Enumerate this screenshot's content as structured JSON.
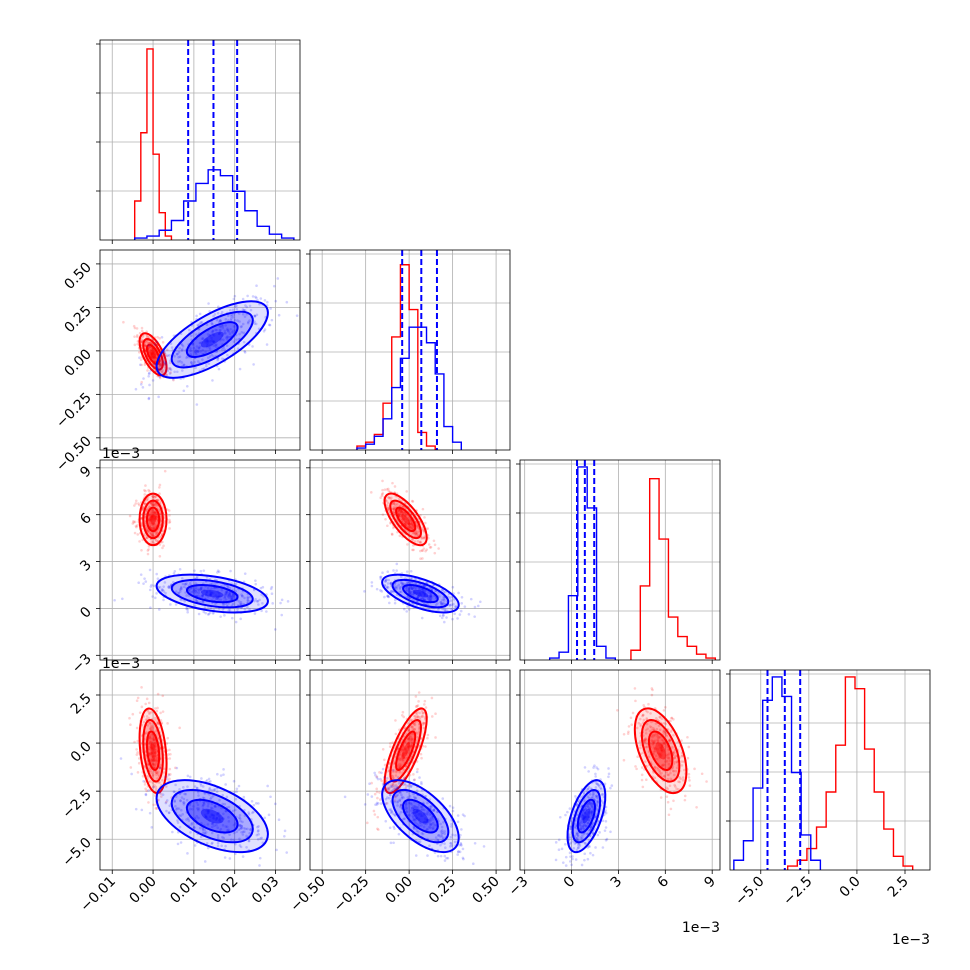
{
  "chart_data": {
    "type": "corner",
    "colors": {
      "red": "#ff0000",
      "blue": "#0000ff",
      "grid": "#b0b0b0"
    },
    "grid": true,
    "series": [
      {
        "color": "#ff0000"
      },
      {
        "color": "#0000ff"
      }
    ],
    "parameters": [
      {
        "range": [
          -0.013,
          0.036
        ],
        "ticks": [
          "-0.01",
          "0.00",
          "0.01",
          "0.02",
          "0.03"
        ],
        "tick_values": [
          -0.01,
          0.0,
          0.01,
          0.02,
          0.03
        ],
        "offset_text": ""
      },
      {
        "range": [
          -0.57,
          0.58
        ],
        "ticks": [
          "-0.50",
          "-0.25",
          "0.00",
          "0.25",
          "0.50"
        ],
        "tick_values": [
          -0.5,
          -0.25,
          0.0,
          0.25,
          0.5
        ],
        "offset_text": ""
      },
      {
        "range": [
          -3.3,
          9.5
        ],
        "ticks": [
          "-3",
          "0",
          "3",
          "6",
          "9"
        ],
        "tick_values": [
          -3,
          0,
          3,
          6,
          9
        ],
        "offset_text": "1e−3"
      },
      {
        "range": [
          -6.6,
          3.8
        ],
        "ticks": [
          "-5.0",
          "-2.5",
          "0.0",
          "2.5"
        ],
        "tick_values": [
          -5.0,
          -2.5,
          0.0,
          2.5
        ],
        "offset_text": "1e−3"
      }
    ],
    "quantiles_blue": [
      [
        0.0086,
        0.0148,
        0.0206
      ],
      [
        -0.04,
        0.07,
        0.16
      ],
      [
        0.35,
        0.85,
        1.45
      ],
      [
        -4.65,
        -3.75,
        -2.95
      ]
    ],
    "histograms": [
      {
        "red": {
          "edges": [
            -0.0045,
            -0.003,
            -0.0015,
            0.0,
            0.0015,
            0.003,
            0.0045
          ],
          "counts": [
            0.2,
            0.55,
            0.98,
            0.44,
            0.14,
            0.02
          ]
        },
        "blue": {
          "edges": [
            -0.0045,
            -0.0015,
            0.0015,
            0.0045,
            0.0075,
            0.0105,
            0.0135,
            0.0165,
            0.0195,
            0.0225,
            0.0255,
            0.0285,
            0.0315,
            0.0345
          ],
          "counts": [
            0.01,
            0.02,
            0.05,
            0.1,
            0.2,
            0.29,
            0.36,
            0.33,
            0.25,
            0.15,
            0.07,
            0.03,
            0.01
          ]
        }
      },
      {
        "red": {
          "edges": [
            -0.3,
            -0.25,
            -0.2,
            -0.15,
            -0.1,
            -0.05,
            0.0,
            0.05,
            0.1,
            0.15
          ],
          "counts": [
            0.02,
            0.04,
            0.08,
            0.24,
            0.58,
            0.95,
            0.72,
            0.09,
            0.02
          ]
        },
        "blue": {
          "edges": [
            -0.3,
            -0.25,
            -0.2,
            -0.15,
            -0.1,
            -0.05,
            0.0,
            0.05,
            0.1,
            0.15,
            0.2,
            0.25,
            0.3
          ],
          "counts": [
            0.01,
            0.03,
            0.07,
            0.16,
            0.32,
            0.47,
            0.63,
            0.63,
            0.55,
            0.39,
            0.12,
            0.04
          ]
        }
      },
      {
        "red": {
          "edges": [
            3.8,
            4.4,
            5.0,
            5.6,
            6.2,
            6.8,
            7.4,
            8.0,
            8.6,
            9.2
          ],
          "counts": [
            0.05,
            0.38,
            0.93,
            0.62,
            0.22,
            0.12,
            0.07,
            0.03,
            0.01
          ]
        },
        "blue": {
          "edges": [
            -1.4,
            -0.8,
            -0.2,
            0.4,
            1.0,
            1.6,
            2.2,
            2.8
          ],
          "counts": [
            0.01,
            0.04,
            0.33,
            0.99,
            0.78,
            0.07,
            0.01
          ]
        }
      },
      {
        "red": {
          "edges": [
            -3.6,
            -3.1,
            -2.6,
            -2.1,
            -1.6,
            -1.1,
            -0.6,
            -0.1,
            0.4,
            0.9,
            1.4,
            1.9,
            2.4,
            2.9
          ],
          "counts": [
            0.02,
            0.05,
            0.11,
            0.22,
            0.4,
            0.64,
            0.99,
            0.93,
            0.62,
            0.4,
            0.21,
            0.07,
            0.02
          ]
        },
        "blue": {
          "edges": [
            -6.4,
            -5.9,
            -5.4,
            -4.9,
            -4.4,
            -3.9,
            -3.4,
            -2.9,
            -2.4,
            -1.9
          ],
          "counts": [
            0.05,
            0.15,
            0.42,
            0.87,
            0.99,
            0.89,
            0.5,
            0.18,
            0.05
          ]
        }
      }
    ],
    "populations": {
      "red": [
        {
          "mean": 0.0,
          "sd": 0.0015
        },
        {
          "mean": -0.02,
          "sd": 0.055
        },
        {
          "mean": 5.7,
          "sd": 0.75
        },
        {
          "mean": -0.4,
          "sd": 1.0
        }
      ],
      "blue": [
        {
          "mean": 0.0145,
          "sd": 0.0062
        },
        {
          "mean": 0.065,
          "sd": 0.1
        },
        {
          "mean": 0.95,
          "sd": 0.55
        },
        {
          "mean": -3.8,
          "sd": 0.85
        }
      ]
    },
    "correlations": {
      "red": {
        "0-1": -0.6,
        "0-2": 0.0,
        "0-3": -0.3,
        "1-2": -0.7,
        "1-3": 0.75,
        "2-3": -0.5
      },
      "blue": {
        "0-1": 0.7,
        "0-2": -0.4,
        "0-3": -0.5,
        "1-2": -0.6,
        "1-3": -0.6,
        "2-3": 0.55
      }
    }
  }
}
